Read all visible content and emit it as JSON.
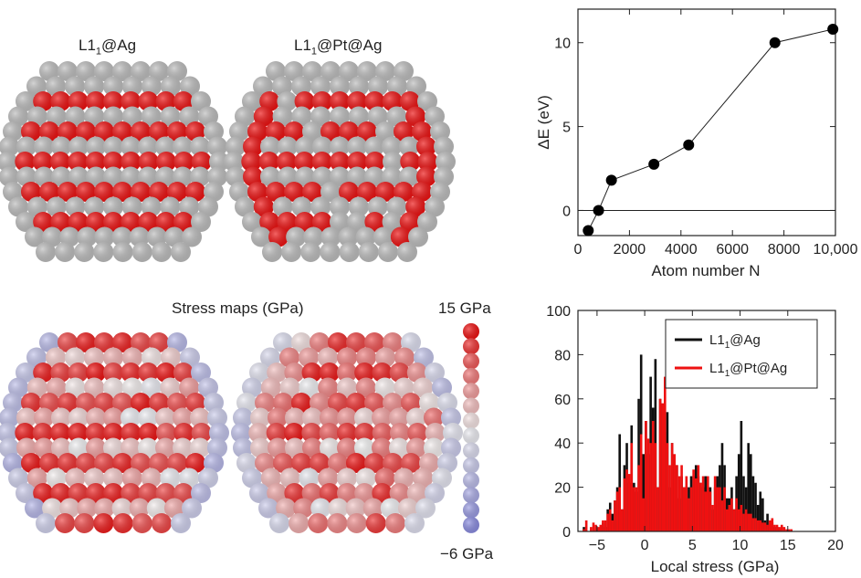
{
  "panels": {
    "structure_left": {
      "prefix": "L1",
      "sub": "1",
      "suffix": "@Ag"
    },
    "structure_right": {
      "prefix": "L1",
      "sub": "1",
      "suffix": "@Pt@Ag"
    },
    "stress_title": "Stress maps (GPa)",
    "colorbar": {
      "max_label": "15 GPa",
      "min_label": "−6 GPa"
    }
  },
  "colors": {
    "red": "#ee1111",
    "grey": "#bdbdbd",
    "black": "#111111",
    "blue": "#8a8ce0",
    "white": "#f4f4f4"
  },
  "chart_data": [
    {
      "type": "line",
      "xlabel": "Atom number N",
      "ylabel": "ΔE (eV)",
      "xlim": [
        0,
        10000
      ],
      "ylim": [
        -1.5,
        12
      ],
      "xticks": [
        0,
        2000,
        4000,
        6000,
        8000,
        10000
      ],
      "xtick_labels": [
        "0",
        "2000",
        "4000",
        "6000",
        "8000",
        "10,000"
      ],
      "yticks": [
        0,
        5,
        10
      ],
      "ytick_labels": [
        "0",
        "5",
        "10"
      ],
      "x": [
        400,
        800,
        1300,
        2950,
        4300,
        7650,
        9900
      ],
      "y": [
        -1.2,
        0.0,
        1.8,
        2.75,
        3.9,
        10.0,
        10.8
      ],
      "reference_line_y": 0,
      "grid": false
    },
    {
      "type": "bar",
      "xlabel": "Local stress (GPa)",
      "ylabel": "",
      "xlim": [
        -7,
        20
      ],
      "ylim": [
        0,
        100
      ],
      "xticks": [
        -5,
        0,
        5,
        10,
        15,
        20
      ],
      "xtick_labels": [
        "−5",
        "0",
        "5",
        "10",
        "15",
        "20"
      ],
      "yticks": [
        0,
        20,
        40,
        60,
        80,
        100
      ],
      "ytick_labels": [
        "0",
        "20",
        "40",
        "60",
        "80",
        "100"
      ],
      "bin_start": -6.5,
      "bin_width": 0.25,
      "legend_position": "top-right",
      "series": [
        {
          "name_prefix": "L1",
          "name_sub": "1",
          "name_suffix": "@Ag",
          "color": "#111111",
          "values": [
            2,
            0,
            0,
            0,
            0,
            1,
            0,
            0,
            4,
            2,
            10,
            13,
            8,
            14,
            20,
            44,
            10,
            30,
            40,
            22,
            48,
            22,
            18,
            60,
            80,
            35,
            50,
            35,
            70,
            56,
            78,
            20,
            60,
            50,
            45,
            54,
            20,
            40,
            30,
            30,
            15,
            25,
            20,
            15,
            20,
            25,
            25,
            30,
            25,
            22,
            20,
            25,
            20,
            20,
            10,
            20,
            25,
            30,
            40,
            30,
            15,
            15,
            20,
            10,
            25,
            35,
            50,
            25,
            20,
            40,
            35,
            25,
            22,
            12,
            18,
            15,
            5,
            8,
            3,
            4,
            2,
            2,
            1,
            1,
            0,
            0,
            0,
            0,
            0,
            0
          ]
        },
        {
          "name_prefix": "L1",
          "name_sub": "1",
          "name_suffix": "@Pt@Ag",
          "color": "#ee1111",
          "values": [
            1,
            5,
            0,
            2,
            4,
            3,
            2,
            3,
            5,
            5,
            8,
            10,
            5,
            14,
            18,
            20,
            10,
            24,
            28,
            26,
            40,
            20,
            20,
            30,
            44,
            15,
            50,
            42,
            40,
            50,
            40,
            20,
            60,
            58,
            70,
            40,
            30,
            40,
            35,
            30,
            25,
            30,
            20,
            25,
            15,
            20,
            28,
            24,
            30,
            22,
            25,
            18,
            25,
            18,
            12,
            25,
            20,
            20,
            14,
            20,
            10,
            12,
            15,
            10,
            15,
            10,
            12,
            8,
            10,
            8,
            8,
            6,
            6,
            5,
            5,
            4,
            4,
            3,
            5,
            6,
            3,
            3,
            2,
            3,
            2,
            1,
            1,
            1,
            0,
            0
          ]
        }
      ]
    }
  ]
}
